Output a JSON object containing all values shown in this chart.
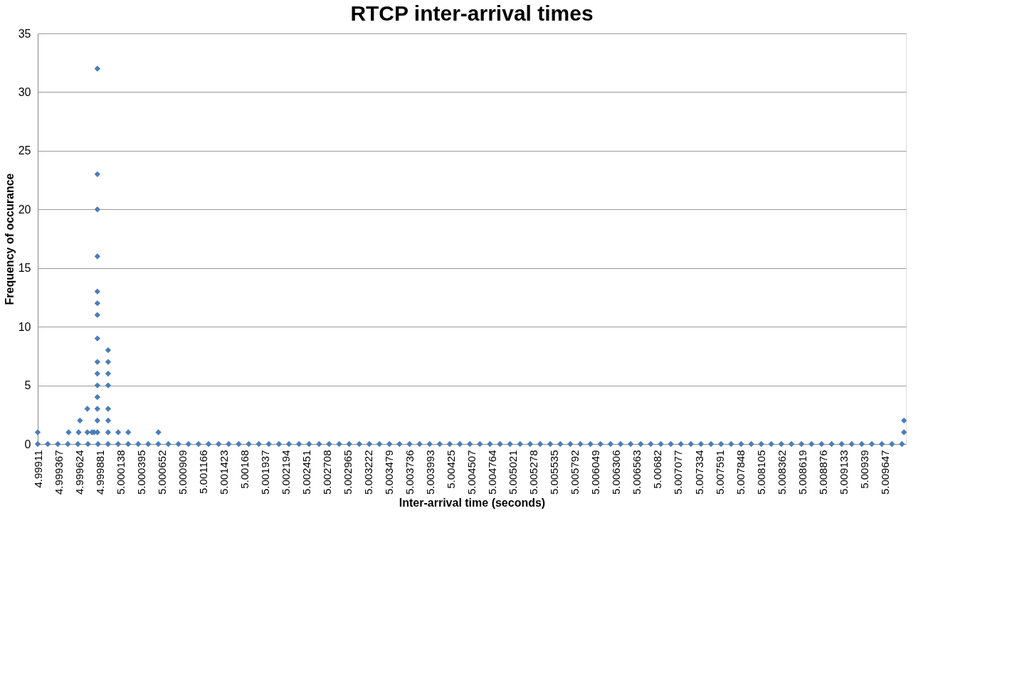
{
  "chart_data": {
    "type": "scatter",
    "title": "RTCP inter-arrival times",
    "xlabel": "Inter-arrival time (seconds)",
    "ylabel": "Frequency of occurance",
    "xlim": [
      4.99911,
      5.00991
    ],
    "ylim": [
      0,
      35
    ],
    "xticks": [
      4.99911,
      4.999367,
      4.999624,
      4.999881,
      5.000138,
      5.000395,
      5.000652,
      5.000909,
      5.001166,
      5.001423,
      5.00168,
      5.001937,
      5.002194,
      5.002451,
      5.002708,
      5.002965,
      5.003222,
      5.003479,
      5.003736,
      5.003993,
      5.00425,
      5.004507,
      5.004764,
      5.005021,
      5.005278,
      5.005535,
      5.005792,
      5.006049,
      5.006306,
      5.006563,
      5.00682,
      5.007077,
      5.007334,
      5.007591,
      5.007848,
      5.008105,
      5.008362,
      5.008619,
      5.008876,
      5.009133,
      5.00939,
      5.009647
    ],
    "yticks": [
      0,
      5,
      10,
      15,
      20,
      25,
      30,
      35
    ],
    "grid": "y",
    "legend": false,
    "marker": "diamond",
    "series": [
      {
        "color": "#4a7ebb",
        "x": [
          4.99911,
          4.999494,
          4.999619,
          4.999635,
          4.999727,
          4.999727,
          4.999785,
          4.99981,
          4.999852,
          4.999852,
          4.999852,
          4.999852,
          4.999852,
          4.999852,
          4.999852,
          4.999852,
          4.999852,
          4.999852,
          4.999852,
          4.999852,
          4.999852,
          4.999852,
          4.999852,
          4.999986,
          4.999986,
          4.999986,
          4.999986,
          4.999986,
          4.999986,
          4.999986,
          5.000111,
          5.000236,
          5.000611,
          5.009885,
          5.009885
        ],
        "values": [
          1,
          1,
          1,
          2,
          3,
          1,
          1,
          1,
          32,
          23,
          20,
          16,
          13,
          12,
          11,
          9,
          7,
          6,
          5,
          4,
          3,
          2,
          1,
          8,
          7,
          6,
          5,
          3,
          2,
          1,
          1,
          1,
          1,
          2,
          1
        ]
      },
      {
        "color": "#4a7ebb",
        "x": [
          4.99911,
          4.999235,
          4.99936,
          4.999485,
          4.99961,
          4.999735,
          4.99986,
          4.999985,
          5.00011,
          5.000235,
          5.00036,
          5.000485,
          5.00061,
          5.000735,
          5.00086,
          5.000985,
          5.00111,
          5.001235,
          5.00136,
          5.001485,
          5.00161,
          5.001735,
          5.00186,
          5.001985,
          5.00211,
          5.002235,
          5.00236,
          5.002485,
          5.00261,
          5.002735,
          5.00286,
          5.002985,
          5.00311,
          5.003235,
          5.00336,
          5.003485,
          5.00361,
          5.003735,
          5.00386,
          5.003985,
          5.00411,
          5.004235,
          5.00436,
          5.004485,
          5.00461,
          5.004735,
          5.00486,
          5.004985,
          5.00511,
          5.005235,
          5.00536,
          5.005485,
          5.00561,
          5.005735,
          5.00586,
          5.005985,
          5.00611,
          5.006235,
          5.00636,
          5.006485,
          5.00661,
          5.006735,
          5.00686,
          5.006985,
          5.00711,
          5.007235,
          5.00736,
          5.007485,
          5.00761,
          5.007735,
          5.00786,
          5.007985,
          5.00811,
          5.008235,
          5.00836,
          5.008485,
          5.00861,
          5.008735,
          5.00886,
          5.008985,
          5.00911,
          5.009235,
          5.00936,
          5.009485,
          5.00961,
          5.009735,
          5.00986
        ],
        "values": [
          0,
          0,
          0,
          0,
          0,
          0,
          0,
          0,
          0,
          0,
          0,
          0,
          0,
          0,
          0,
          0,
          0,
          0,
          0,
          0,
          0,
          0,
          0,
          0,
          0,
          0,
          0,
          0,
          0,
          0,
          0,
          0,
          0,
          0,
          0,
          0,
          0,
          0,
          0,
          0,
          0,
          0,
          0,
          0,
          0,
          0,
          0,
          0,
          0,
          0,
          0,
          0,
          0,
          0,
          0,
          0,
          0,
          0,
          0,
          0,
          0,
          0,
          0,
          0,
          0,
          0,
          0,
          0,
          0,
          0,
          0,
          0,
          0,
          0,
          0,
          0,
          0,
          0,
          0,
          0,
          0,
          0,
          0,
          0,
          0,
          0,
          0
        ]
      }
    ]
  }
}
